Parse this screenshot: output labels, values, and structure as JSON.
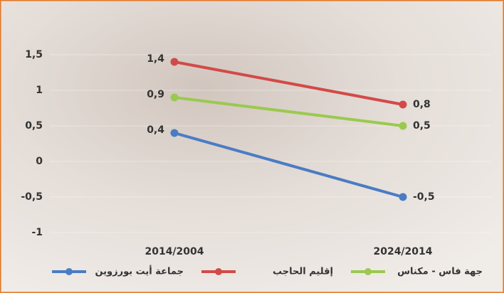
{
  "chart_data": {
    "type": "line",
    "categories": [
      "2014/2004",
      "2024/2014"
    ],
    "series": [
      {
        "name": "جهة فاس - مكناس",
        "color": "#9bc94f",
        "values": [
          0.9,
          0.5
        ],
        "value_labels": [
          "0,9",
          "0,5"
        ]
      },
      {
        "name": "إقليم الحاجب",
        "color": "#d24a48",
        "values": [
          1.4,
          0.8
        ],
        "value_labels": [
          "1,4",
          "0,8"
        ]
      },
      {
        "name": "جماعة أيت بورزوين",
        "color": "#4a7cc4",
        "values": [
          0.4,
          -0.5
        ],
        "value_labels": [
          "0,4",
          "-0,5"
        ]
      }
    ],
    "ylim": [
      -1.2,
      1.8
    ],
    "yticks": [
      {
        "value": -1,
        "label": "-1"
      },
      {
        "value": -0.5,
        "label": "-0,5"
      },
      0,
      {
        "value": 0.5,
        "label": "0,5"
      },
      1,
      {
        "value": 1.5,
        "label": "1,5"
      }
    ],
    "grid": true,
    "legend": "bottom"
  }
}
